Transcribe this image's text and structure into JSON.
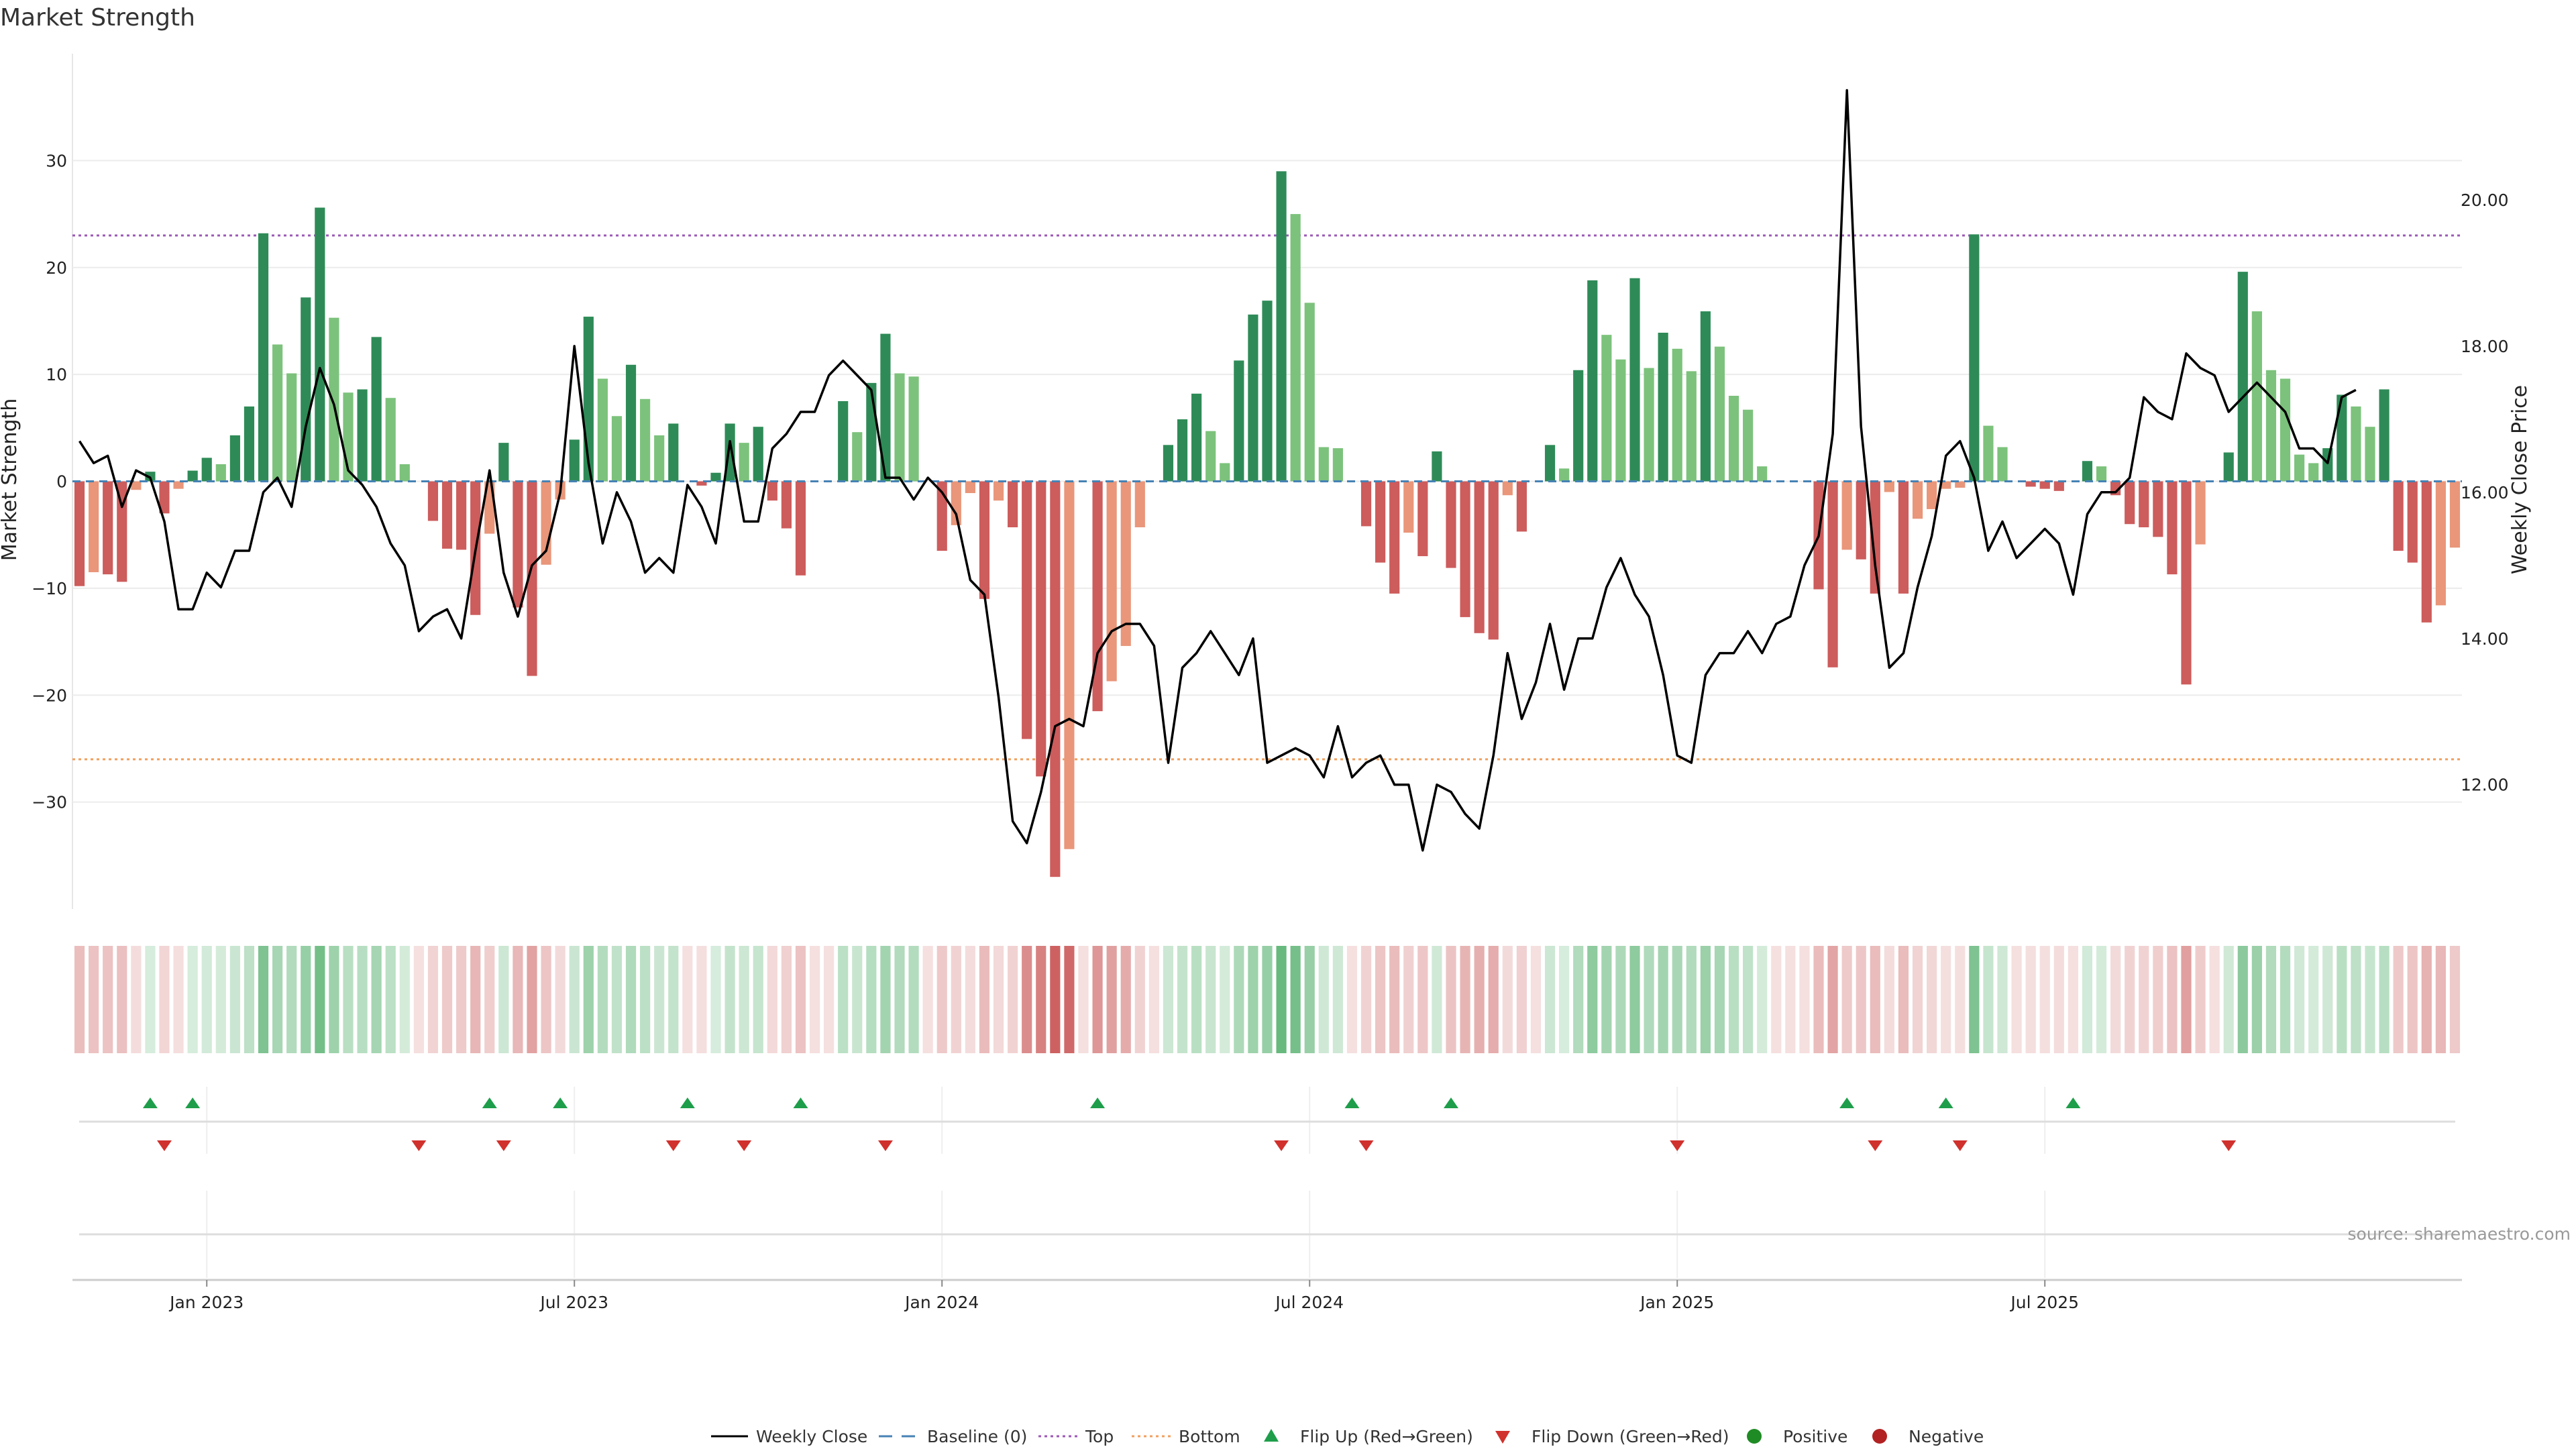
{
  "chart_data": {
    "type": "bar",
    "title": "Market Strength",
    "ylabel_left": "Market Strength",
    "ylabel_right": "Weekly Close Price",
    "ylim_left": [
      -40,
      40
    ],
    "ylim_right": [
      10.3,
      22.0
    ],
    "left_ticks": [
      30,
      20,
      10,
      0,
      -10,
      -20,
      -30
    ],
    "left_tick_labels": [
      "30",
      "20",
      "10",
      "0",
      "−10",
      "−20",
      "−30"
    ],
    "right_ticks": [
      20,
      18,
      16,
      14,
      12
    ],
    "right_tick_labels": [
      "20.00",
      "18.00",
      "16.00",
      "14.00",
      "12.00"
    ],
    "x_tick_weeks": [
      9,
      35,
      61,
      87,
      113,
      139
    ],
    "x_tick_labels": [
      "Jan 2023",
      "Jul 2023",
      "Jan 2024",
      "Jul 2024",
      "Jan 2025",
      "Jul 2025"
    ],
    "top_threshold": 23,
    "bottom_threshold": -26,
    "strength": [
      -9.8,
      -8.5,
      -8.7,
      -9.4,
      -0.8,
      0.9,
      -3.0,
      -0.7,
      1.0,
      2.2,
      1.6,
      4.3,
      7.0,
      23.2,
      12.8,
      10.1,
      17.2,
      25.6,
      15.3,
      8.3,
      8.6,
      13.5,
      7.8,
      1.6,
      0,
      -3.7,
      -6.3,
      -6.4,
      -12.5,
      -4.9,
      3.6,
      -11.8,
      -18.2,
      -7.8,
      -1.7,
      3.9,
      15.4,
      9.6,
      6.1,
      10.9,
      7.7,
      4.3,
      5.4,
      0,
      -0.4,
      0.8,
      5.4,
      3.6,
      5.1,
      -1.8,
      -4.4,
      -8.8,
      0,
      0,
      7.5,
      4.6,
      9.2,
      13.8,
      10.1,
      9.8,
      0,
      -6.5,
      -4.1,
      -1.1,
      -11.0,
      -1.8,
      -4.3,
      -24.1,
      -27.6,
      -37.0,
      -34.4,
      0,
      -21.5,
      -18.7,
      -15.4,
      -4.3,
      0,
      3.4,
      5.8,
      8.2,
      4.7,
      1.7,
      11.3,
      15.6,
      16.9,
      29.0,
      25.0,
      16.7,
      3.2,
      3.1,
      0,
      -4.2,
      -7.6,
      -10.5,
      -4.8,
      -7.0,
      2.8,
      -8.1,
      -12.7,
      -14.2,
      -14.8,
      -1.3,
      -4.7,
      0,
      3.4,
      1.2,
      10.4,
      18.8,
      13.7,
      11.4,
      19.0,
      10.6,
      13.9,
      12.4,
      10.3,
      15.9,
      12.6,
      8.0,
      6.7,
      1.4,
      0,
      0,
      0,
      -10.1,
      -17.4,
      -6.4,
      -7.3,
      -10.5,
      -1.0,
      -10.5,
      -3.5,
      -2.6,
      -0.7,
      -0.6,
      23.1,
      5.2,
      3.2,
      0,
      -0.5,
      -0.7,
      -0.9,
      0,
      1.9,
      1.4,
      -1.3,
      -4.0,
      -4.3,
      -5.2,
      -8.7,
      -19.0,
      -5.9,
      0,
      2.7,
      19.6,
      15.9,
      10.4,
      9.6,
      2.5,
      1.7,
      3.1,
      8.1,
      7.0,
      5.1,
      8.6,
      -6.5,
      -7.6,
      -13.2,
      -11.6,
      -6.2
    ],
    "weekly_close": [
      16.7,
      16.4,
      16.5,
      15.8,
      16.3,
      16.2,
      15.6,
      14.4,
      14.4,
      14.9,
      14.7,
      15.2,
      15.2,
      16.0,
      16.2,
      15.8,
      16.9,
      17.7,
      17.2,
      16.3,
      16.1,
      15.8,
      15.3,
      15.0,
      14.1,
      14.3,
      14.4,
      14.0,
      15.2,
      16.3,
      14.9,
      14.3,
      15.0,
      15.2,
      16.0,
      18.0,
      16.4,
      15.3,
      16.0,
      15.6,
      14.9,
      15.1,
      14.9,
      16.1,
      15.8,
      15.3,
      16.7,
      15.6,
      15.6,
      16.6,
      16.8,
      17.1,
      17.1,
      17.6,
      17.8,
      17.6,
      17.4,
      16.2,
      16.2,
      15.9,
      16.2,
      16.0,
      15.7,
      14.8,
      14.6,
      13.2,
      11.5,
      11.2,
      11.9,
      12.8,
      12.9,
      12.8,
      13.8,
      14.1,
      14.2,
      14.2,
      13.9,
      12.3,
      13.6,
      13.8,
      14.1,
      13.8,
      13.5,
      14.0,
      12.3,
      12.4,
      12.5,
      12.4,
      12.1,
      12.8,
      12.1,
      12.3,
      12.4,
      12.0,
      12.0,
      11.1,
      12.0,
      11.9,
      11.6,
      11.4,
      12.4,
      13.8,
      12.9,
      13.4,
      14.2,
      13.3,
      14.0,
      14.0,
      14.7,
      15.1,
      14.6,
      14.3,
      13.5,
      12.4,
      12.3,
      13.5,
      13.8,
      13.8,
      14.1,
      13.8,
      14.2,
      14.3,
      15.0,
      15.4,
      16.8,
      21.5,
      16.9,
      15.0,
      13.6,
      13.8,
      14.7,
      15.4,
      16.5,
      16.7,
      16.2,
      15.2,
      15.6,
      15.1,
      15.3,
      15.5,
      15.3,
      14.6,
      15.7,
      16.0,
      16.0,
      16.2,
      17.3,
      17.1,
      17.0,
      17.9,
      17.7,
      17.6,
      17.1,
      17.3,
      17.5,
      17.3,
      17.1,
      16.6,
      16.6,
      16.4,
      17.3,
      17.4
    ],
    "flip_up_weeks": [
      5,
      8,
      29,
      34,
      43,
      51,
      72,
      90,
      97,
      125,
      132,
      141
    ],
    "flip_down_weeks": [
      6,
      24,
      30,
      42,
      47,
      57,
      85,
      91,
      113,
      127,
      133,
      152
    ],
    "legend": [
      "Weekly Close",
      "Baseline (0)",
      "Top",
      "Bottom",
      "Flip Up (Red→Green)",
      "Flip Down (Green→Red)",
      "Positive",
      "Negative"
    ],
    "source": "source: sharemaestro.com",
    "colors": {
      "pos_strong": "#2e8b57",
      "pos_light": "#7cc27c",
      "neg_strong": "#cd5c5c",
      "neg_light": "#e9967a",
      "line": "#000000",
      "baseline": "#4682b4",
      "top": "#9b59b6",
      "bottom": "#f0a060",
      "flip_up": "#1e9e4a",
      "flip_down": "#d0312d",
      "positive_dot": "#1f8b24",
      "negative_dot": "#b22222"
    }
  }
}
